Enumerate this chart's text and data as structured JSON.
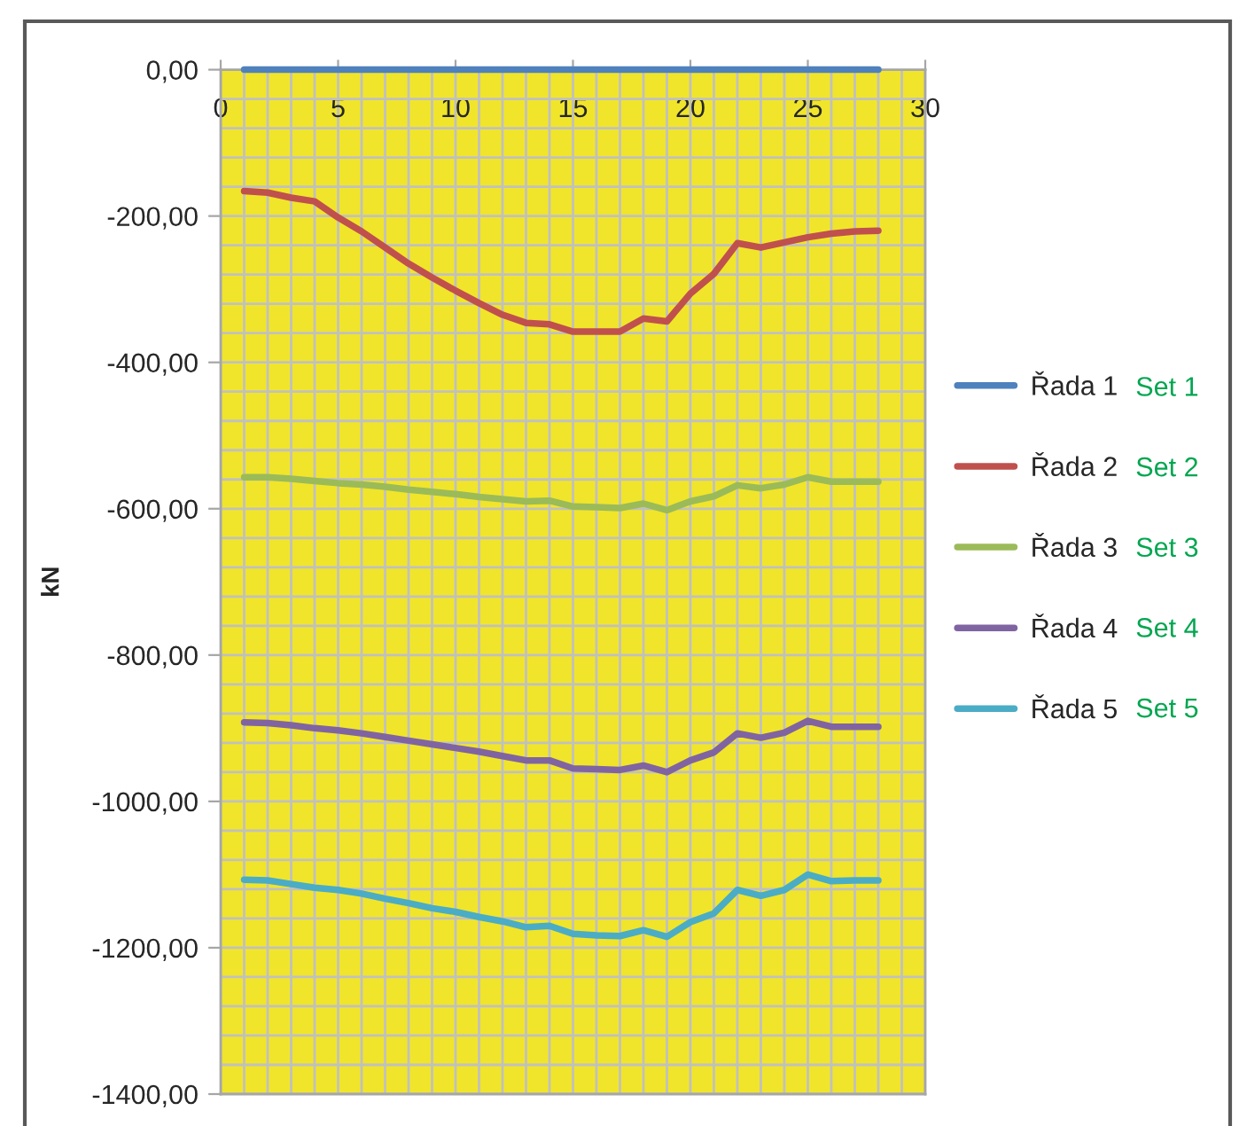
{
  "chart_data": {
    "type": "line",
    "ylabel": "kN",
    "x": [
      1,
      2,
      3,
      4,
      5,
      6,
      7,
      8,
      9,
      10,
      11,
      12,
      13,
      14,
      15,
      16,
      17,
      18,
      19,
      20,
      21,
      22,
      23,
      24,
      25,
      26,
      27,
      28
    ],
    "series": [
      {
        "name": "Řada 1",
        "color": "#4f81bd",
        "values": [
          0,
          0,
          0,
          0,
          0,
          0,
          0,
          0,
          0,
          0,
          0,
          0,
          0,
          0,
          0,
          0,
          0,
          0,
          0,
          0,
          0,
          0,
          0,
          0,
          0,
          0,
          0,
          0
        ]
      },
      {
        "name": "Řada 2",
        "color": "#c0504d",
        "values": [
          -166,
          -168,
          -175,
          -180,
          -202,
          -221,
          -243,
          -265,
          -284,
          -302,
          -319,
          -335,
          -346,
          -348,
          -358,
          -358,
          -358,
          -340,
          -344,
          -306,
          -279,
          -237,
          -243,
          -236,
          -229,
          -224,
          -221,
          -220
        ]
      },
      {
        "name": "Řada 3",
        "color": "#9bbb59",
        "values": [
          -557,
          -557,
          -559,
          -562,
          -565,
          -567,
          -570,
          -574,
          -577,
          -580,
          -584,
          -587,
          -590,
          -589,
          -597,
          -598,
          -599,
          -593,
          -602,
          -590,
          -583,
          -568,
          -572,
          -567,
          -557,
          -563,
          -563,
          -563
        ]
      },
      {
        "name": "Řada 4",
        "color": "#8064a2",
        "values": [
          -892,
          -893,
          -896,
          -900,
          -903,
          -907,
          -912,
          -917,
          -922,
          -927,
          -932,
          -938,
          -944,
          -944,
          -955,
          -956,
          -957,
          -951,
          -960,
          -944,
          -933,
          -907,
          -913,
          -906,
          -890,
          -898,
          -898,
          -898
        ]
      },
      {
        "name": "Řada 5",
        "color": "#4bacc6",
        "values": [
          -1107,
          -1108,
          -1113,
          -1118,
          -1121,
          -1126,
          -1133,
          -1139,
          -1146,
          -1151,
          -1158,
          -1164,
          -1172,
          -1170,
          -1181,
          -1183,
          -1184,
          -1176,
          -1185,
          -1165,
          -1153,
          -1121,
          -1129,
          -1121,
          -1100,
          -1109,
          -1108,
          -1108
        ]
      }
    ],
    "xlim": [
      0,
      30
    ],
    "xticks": [
      0,
      5,
      10,
      15,
      20,
      25,
      30
    ],
    "ylim": [
      -1400,
      0
    ],
    "yticks": [
      {
        "value": 0,
        "label": "0,00"
      },
      {
        "value": -200,
        "label": "-200,00"
      },
      {
        "value": -400,
        "label": "-400,00"
      },
      {
        "value": -600,
        "label": "-600,00"
      },
      {
        "value": -800,
        "label": "-800,00"
      },
      {
        "value": -1000,
        "label": "-1000,00"
      },
      {
        "value": -1200,
        "label": "-1200,00"
      },
      {
        "value": -1400,
        "label": "-1400,00"
      }
    ],
    "grid": true,
    "legend": "right",
    "annotations": [
      "Set 1",
      "Set 2",
      "Set 3",
      "Set 4",
      "Set 5"
    ]
  }
}
